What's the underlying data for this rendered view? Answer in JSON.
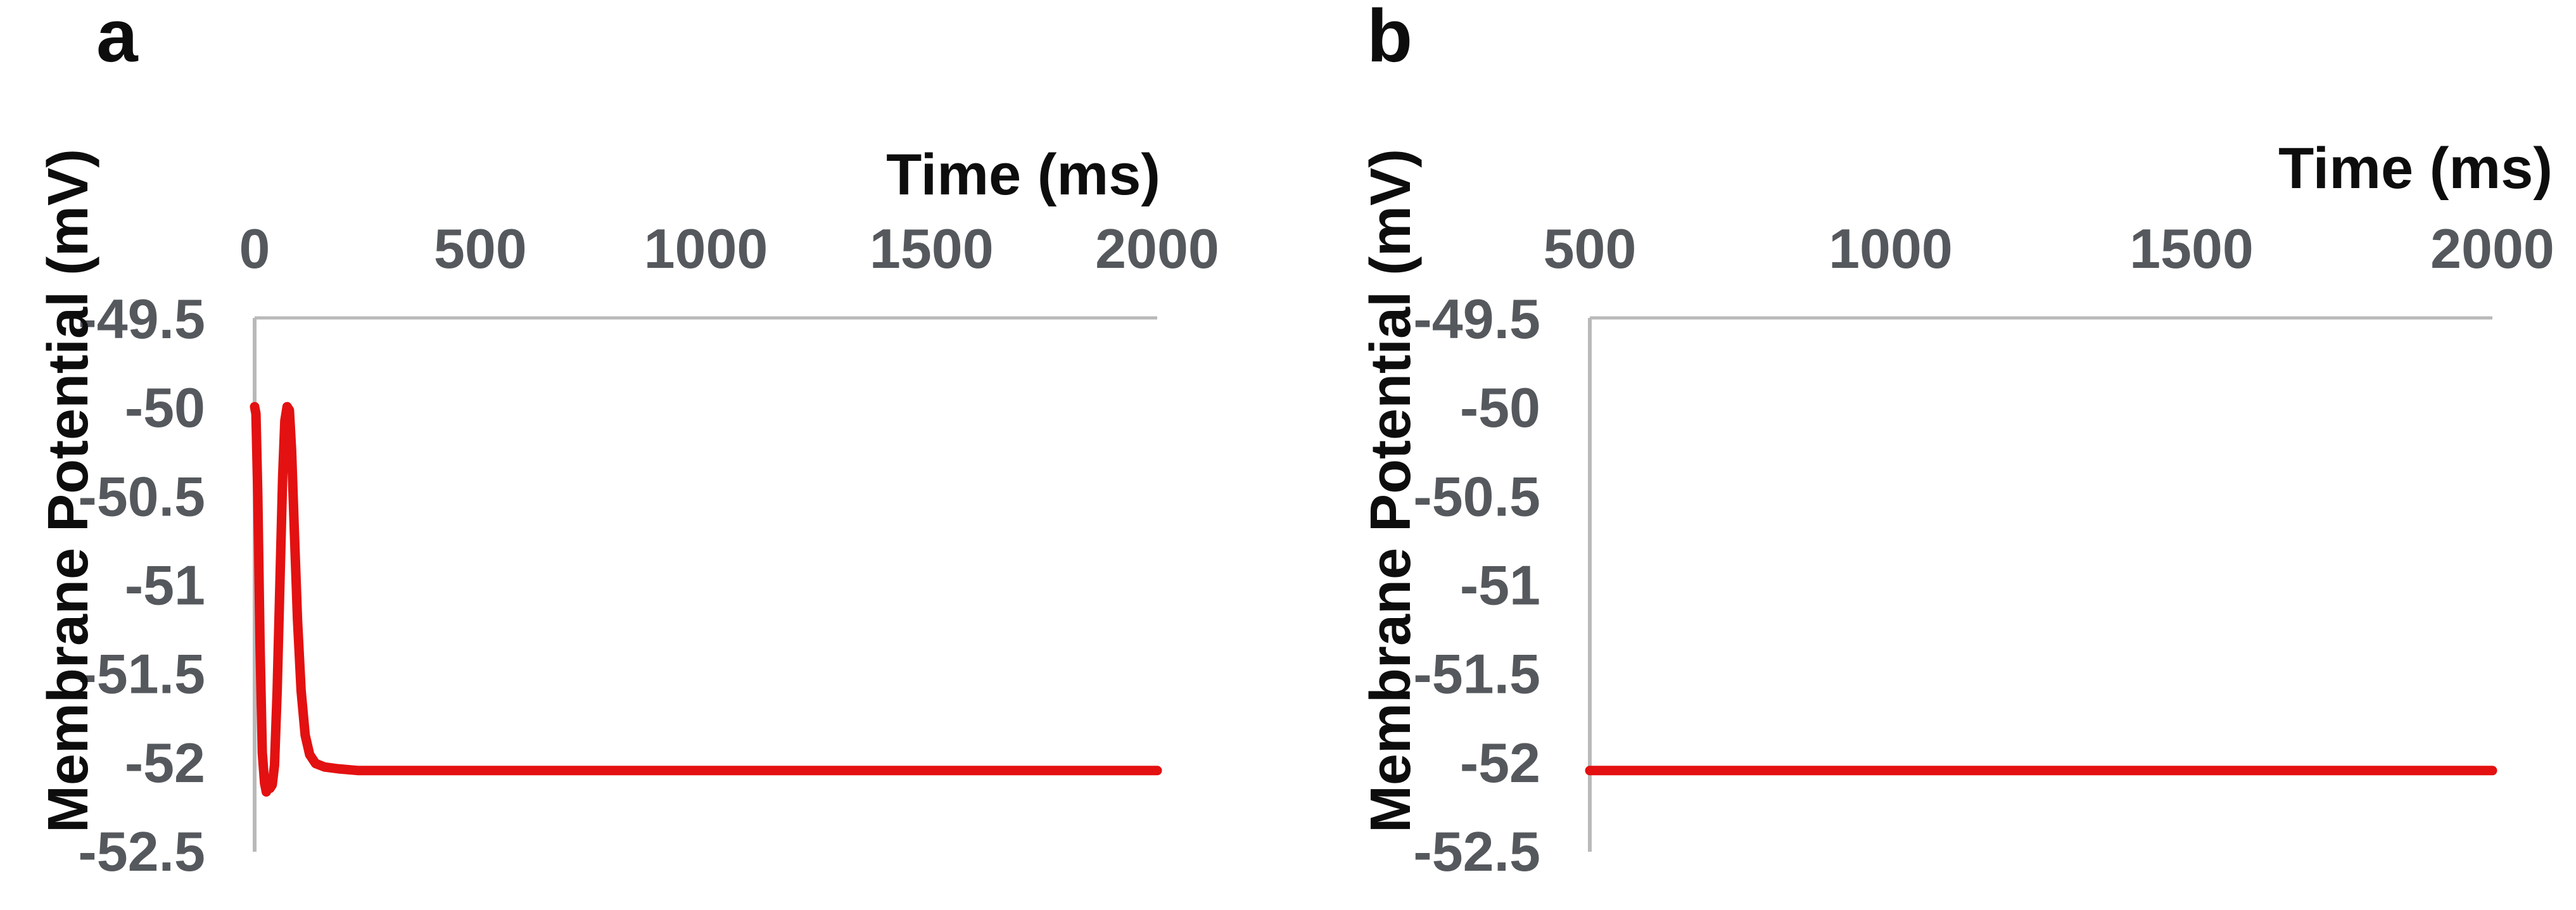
{
  "style": {
    "background_color": "#ffffff",
    "line_color": "#e31111",
    "tick_label_color": "#55585c",
    "axis_line_color": "#b9b9b9",
    "title_color": "#0d0d0d"
  },
  "chart_data": [
    {
      "type": "line",
      "panel_label": "a",
      "xlabel": "Time (ms)",
      "ylabel": "Membrane Potential (mV)",
      "x_ticks": [
        0,
        500,
        1000,
        1500,
        2000
      ],
      "y_ticks": [
        -49.5,
        -50,
        -50.5,
        -51,
        -51.5,
        -52,
        -52.5
      ],
      "xlim": [
        0,
        2000
      ],
      "ylim": [
        -52.5,
        -49.5
      ],
      "x_axis_side": "top",
      "y_axis_side": "left",
      "grid": false,
      "legend": "none",
      "series": [
        {
          "name": "membrane-potential-trace",
          "color": "#e31111",
          "points": [
            [
              0,
              -50
            ],
            [
              3,
              -50.04
            ],
            [
              7,
              -50.5
            ],
            [
              12,
              -51.35
            ],
            [
              17,
              -51.95
            ],
            [
              22,
              -52.12
            ],
            [
              26,
              -52.17
            ],
            [
              30,
              -52.1
            ],
            [
              34,
              -52.15
            ],
            [
              39,
              -52.13
            ],
            [
              44,
              -52.02
            ],
            [
              50,
              -51.6
            ],
            [
              56,
              -51.0
            ],
            [
              62,
              -50.4
            ],
            [
              67,
              -50.08
            ],
            [
              72,
              -50.0
            ],
            [
              77,
              -50.02
            ],
            [
              82,
              -50.25
            ],
            [
              88,
              -50.7
            ],
            [
              95,
              -51.2
            ],
            [
              103,
              -51.6
            ],
            [
              112,
              -51.85
            ],
            [
              122,
              -51.96
            ],
            [
              135,
              -52.01
            ],
            [
              155,
              -52.03
            ],
            [
              185,
              -52.04
            ],
            [
              230,
              -52.05
            ],
            [
              500,
              -52.05
            ],
            [
              1000,
              -52.05
            ],
            [
              1500,
              -52.05
            ],
            [
              2000,
              -52.05
            ]
          ]
        }
      ]
    },
    {
      "type": "line",
      "panel_label": "b",
      "xlabel": "Time (ms)",
      "ylabel": "Membrane Potential (mV)",
      "x_ticks": [
        500,
        1000,
        1500,
        2000
      ],
      "y_ticks": [
        -49.5,
        -50,
        -50.5,
        -51,
        -51.5,
        -52,
        -52.5
      ],
      "xlim": [
        500,
        2000
      ],
      "ylim": [
        -52.5,
        -49.5
      ],
      "x_axis_side": "top",
      "y_axis_side": "left",
      "grid": false,
      "legend": "none",
      "series": [
        {
          "name": "membrane-potential-trace",
          "color": "#e31111",
          "points": [
            [
              500,
              -52.05
            ],
            [
              875,
              -52.05
            ],
            [
              1250,
              -52.05
            ],
            [
              1625,
              -52.05
            ],
            [
              2000,
              -52.05
            ]
          ]
        }
      ]
    }
  ]
}
